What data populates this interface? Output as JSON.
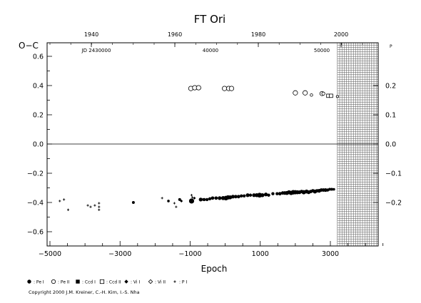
{
  "chart_data": {
    "type": "scatter",
    "title": "FT Ori",
    "xlabel": "Epoch",
    "ylabel": "O−C",
    "xlim": [
      -5200,
      4500
    ],
    "ylim": [
      -0.66,
      0.66
    ],
    "x_ticks": [
      "−5000",
      "−3000",
      "−1000",
      "1000",
      "3000"
    ],
    "y_ticks": [
      "−0.6",
      "−0.4",
      "−0.2",
      "0.0",
      "0.2",
      "0.4",
      "0.6"
    ],
    "y_ticks_left_display": [
      "−0.6",
      "−0.4",
      "−0.2",
      "0.0",
      "0.2",
      "0.4",
      "0.6"
    ],
    "top_axis_years": [
      "1940",
      "1960",
      "1980",
      "2000"
    ],
    "top_axis_jd": [
      "JD 2430000",
      "40000",
      "50000"
    ],
    "right_axis": {
      "label_unit": "P",
      "ticks": [
        "0.2",
        "0.1",
        "0.0",
        "−0.1",
        "−0.2"
      ]
    },
    "zero_line": true,
    "future_hatched_from_epoch": 3200,
    "series": [
      {
        "name": "Pe I",
        "marker": "filled-circle",
        "points": [
          [
            -2620,
            -0.4
          ],
          [
            -1620,
            -0.39
          ],
          [
            -1300,
            -0.38
          ],
          [
            -960,
            -0.39
          ],
          [
            -700,
            -0.38
          ],
          [
            -600,
            -0.38
          ],
          [
            -520,
            -0.38
          ],
          [
            -440,
            -0.375
          ],
          [
            -360,
            -0.37
          ],
          [
            -260,
            -0.37
          ],
          [
            -160,
            -0.37
          ],
          [
            -60,
            -0.37
          ],
          [
            20,
            -0.37
          ],
          [
            80,
            -0.365
          ],
          [
            140,
            -0.365
          ],
          [
            220,
            -0.36
          ],
          [
            300,
            -0.36
          ],
          [
            380,
            -0.36
          ],
          [
            460,
            -0.355
          ],
          [
            540,
            -0.355
          ],
          [
            640,
            -0.35
          ],
          [
            720,
            -0.35
          ],
          [
            820,
            -0.35
          ],
          [
            900,
            -0.35
          ],
          [
            980,
            -0.35
          ],
          [
            1060,
            -0.35
          ],
          [
            1160,
            -0.345
          ],
          [
            1240,
            -0.35
          ],
          [
            1360,
            -0.34
          ],
          [
            1480,
            -0.34
          ],
          [
            1560,
            -0.34
          ],
          [
            1640,
            -0.335
          ],
          [
            1700,
            -0.335
          ],
          [
            1760,
            -0.335
          ],
          [
            1820,
            -0.33
          ],
          [
            1880,
            -0.335
          ],
          [
            1940,
            -0.33
          ],
          [
            2000,
            -0.33
          ],
          [
            2060,
            -0.33
          ],
          [
            2120,
            -0.33
          ],
          [
            2180,
            -0.325
          ],
          [
            2240,
            -0.33
          ],
          [
            2320,
            -0.325
          ],
          [
            2380,
            -0.33
          ],
          [
            2440,
            -0.325
          ],
          [
            2500,
            -0.32
          ],
          [
            2560,
            -0.325
          ],
          [
            2620,
            -0.32
          ],
          [
            2680,
            -0.32
          ],
          [
            2740,
            -0.315
          ],
          [
            2800,
            -0.315
          ],
          [
            2860,
            -0.315
          ],
          [
            2920,
            -0.315
          ],
          [
            2980,
            -0.31
          ],
          [
            3040,
            -0.31
          ],
          [
            3100,
            -0.31
          ]
        ],
        "sizes": [
          2,
          1.8,
          2,
          3.6,
          2.6,
          2.2,
          2.2,
          2.2,
          2.4,
          2.4,
          2.6,
          2.8,
          3.2,
          3,
          2.8,
          2.6,
          2.4,
          2.4,
          2.2,
          2.2,
          2.6,
          2.2,
          2.6,
          2.8,
          3.4,
          2.8,
          2.6,
          2.2,
          2.2,
          2.2,
          2.4,
          2.4,
          2.6,
          2.8,
          2.8,
          3,
          3.2,
          3,
          2.8,
          2.6,
          2.4,
          3,
          2.8,
          2.6,
          2.4,
          2.4,
          2.8,
          2.4,
          2.6,
          2.4,
          2.4,
          2.6,
          2.2,
          2,
          2,
          1.8
        ]
      },
      {
        "name": "Pe II",
        "marker": "open-circle",
        "points": [
          [
            -980,
            0.38
          ],
          [
            -870,
            0.385
          ],
          [
            -760,
            0.385
          ],
          [
            -20,
            0.38
          ],
          [
            100,
            0.38
          ],
          [
            180,
            0.38
          ],
          [
            2000,
            0.35
          ],
          [
            2280,
            0.35
          ],
          [
            2460,
            0.335
          ],
          [
            2760,
            0.345
          ],
          [
            2800,
            0.345
          ],
          [
            3200,
            0.325
          ]
        ],
        "sizes": [
          3.2,
          3.2,
          3.2,
          3.2,
          3.2,
          3.2,
          3.2,
          3.2,
          1.8,
          3,
          2.2,
          1.6
        ]
      },
      {
        "name": "Ccd I",
        "marker": "filled-square",
        "points": []
      },
      {
        "name": "Ccd II",
        "marker": "open-square",
        "points": [
          [
            2940,
            0.33
          ],
          [
            3020,
            0.33
          ]
        ]
      },
      {
        "name": "Vi I",
        "marker": "filled-diamond",
        "points": [
          [
            -1250,
            -0.39
          ],
          [
            -880,
            -0.37
          ],
          [
            -640,
            -0.38
          ]
        ]
      },
      {
        "name": "Vi II",
        "marker": "open-diamond",
        "points": []
      },
      {
        "name": "P I",
        "marker": "plus",
        "points": [
          [
            -4720,
            -0.39
          ],
          [
            -4600,
            -0.38
          ],
          [
            -4480,
            -0.45
          ],
          [
            -3920,
            -0.42
          ],
          [
            -3840,
            -0.43
          ],
          [
            -3720,
            -0.42
          ],
          [
            -3600,
            -0.43
          ],
          [
            -3600,
            -0.405
          ],
          [
            -3600,
            -0.45
          ],
          [
            -1800,
            -0.37
          ],
          [
            -1450,
            -0.405
          ],
          [
            -1400,
            -0.43
          ],
          [
            -960,
            -0.35
          ],
          [
            -940,
            -0.365
          ]
        ]
      }
    ],
    "legend": [
      {
        "marker": "filled-circle",
        "label": ": Pe I"
      },
      {
        "marker": "open-circle",
        "label": ": Pe II"
      },
      {
        "marker": "filled-square",
        "label": ": Ccd I"
      },
      {
        "marker": "open-square",
        "label": ": Ccd II"
      },
      {
        "marker": "filled-diamond",
        "label": ": Vi I"
      },
      {
        "marker": "open-diamond",
        "label": ": Vi II"
      },
      {
        "marker": "plus",
        "label": ": P I"
      }
    ],
    "legend_position": "bottom-left",
    "copyright": "Copyright 2000 J.M. Kreiner, C.-H. Kim, I.-S. Nha"
  }
}
